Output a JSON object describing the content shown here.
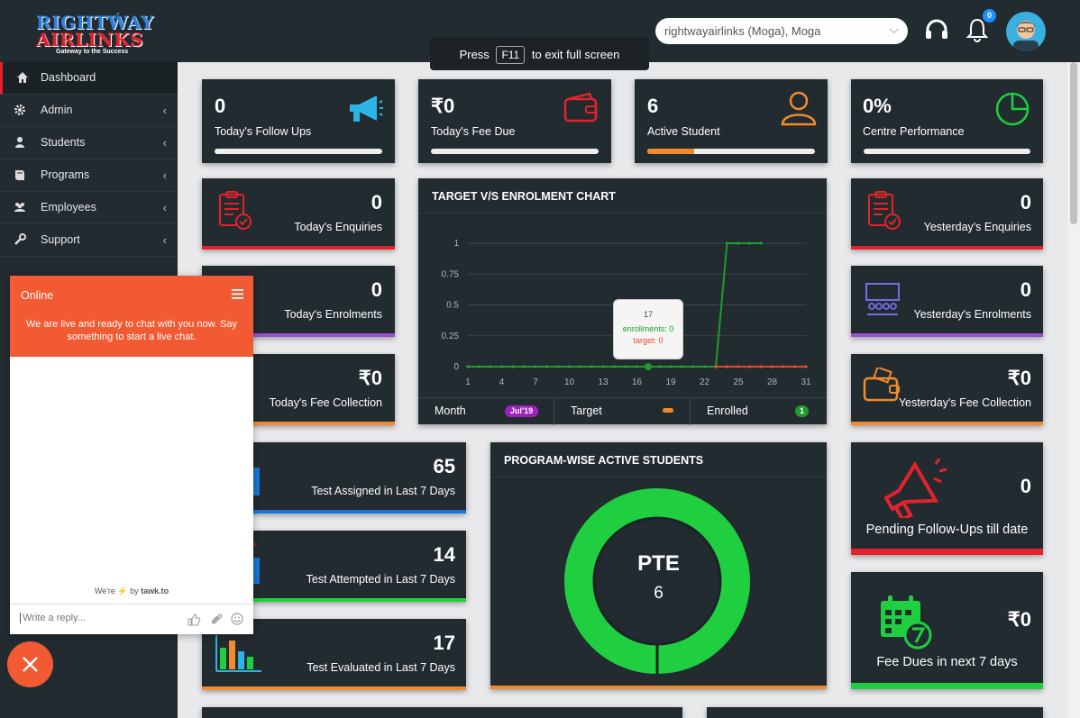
{
  "header": {
    "logo_line1": "RIGHTWAY",
    "logo_line2": "AIRLINKS",
    "logo_tagline": "Gateway to the Success",
    "branch_select": "rightwayairlinks (Moga), Moga",
    "notification_count": "0"
  },
  "fullscreen_notice": {
    "before": "Press",
    "key": "F11",
    "after": "to exit full screen"
  },
  "sidebar": {
    "items": [
      {
        "label": "Dashboard",
        "icon": "home-icon",
        "active": true
      },
      {
        "label": "Admin",
        "icon": "gear-icon"
      },
      {
        "label": "Students",
        "icon": "user-icon"
      },
      {
        "label": "Programs",
        "icon": "book-icon"
      },
      {
        "label": "Employees",
        "icon": "users-icon"
      },
      {
        "label": "Support",
        "icon": "wrench-icon"
      }
    ]
  },
  "stats": {
    "follow_ups": {
      "value": "0",
      "label": "Today's Follow Ups"
    },
    "fee_due": {
      "value": "₹0",
      "label": "Today's Fee Due"
    },
    "active_student": {
      "value": "6",
      "label": "Active Student",
      "progress": 0.28
    },
    "centre_performance": {
      "value": "0%",
      "label": "Centre Performance"
    },
    "today_enquiries": {
      "value": "0",
      "label": "Today's Enquiries"
    },
    "today_enrolments": {
      "value": "0",
      "label": "Today's Enrolments"
    },
    "today_fee_collection": {
      "value": "₹0",
      "label": "Today's Fee Collection"
    },
    "yesterday_enquiries": {
      "value": "0",
      "label": "Yesterday's Enquiries"
    },
    "yesterday_enrolments": {
      "value": "0",
      "label": "Yesterday's Enrolments"
    },
    "yesterday_fee_collection": {
      "value": "₹0",
      "label": "Yesterday's Fee Collection"
    },
    "test_assigned": {
      "value": "65",
      "label": "Test Assigned in Last 7 Days"
    },
    "test_attempted": {
      "value": "14",
      "label": "Test Attempted in Last 7 Days"
    },
    "test_evaluated": {
      "value": "17",
      "label": "Test Evaluated in Last 7 Days"
    },
    "pending_followups": {
      "value": "0",
      "label": "Pending Follow-Ups till date"
    },
    "fee_dues_next7": {
      "value": "₹0",
      "label": "Fee Dues in next 7 days"
    }
  },
  "target_chart": {
    "title": "TARGET V/S ENROLMENT CHART",
    "tooltip": {
      "title": "17",
      "enrollments": "enrollments: 0",
      "target": "target: 0"
    },
    "footer": {
      "month_label": "Month",
      "month_value": "Jul'19",
      "target_label": "Target",
      "enrolled_label": "Enrolled",
      "enrolled_value": "1"
    }
  },
  "chart_data": {
    "type": "line",
    "title": "TARGET V/S ENROLMENT CHART",
    "xlabel": "",
    "ylabel": "",
    "x_ticks": [
      1,
      4,
      7,
      10,
      13,
      16,
      19,
      22,
      25,
      28,
      31
    ],
    "y_ticks": [
      "0",
      "0.25",
      "0.5",
      "0.75",
      "1"
    ],
    "ylim": [
      0,
      1
    ],
    "xlim": [
      1,
      31
    ],
    "series": [
      {
        "name": "enrollments",
        "color": "#1e9c2f",
        "x": [
          1,
          2,
          3,
          4,
          5,
          6,
          7,
          8,
          9,
          10,
          11,
          12,
          13,
          14,
          15,
          16,
          17,
          18,
          19,
          20,
          21,
          22,
          23,
          24,
          25,
          26,
          27
        ],
        "values": [
          0,
          0,
          0,
          0,
          0,
          0,
          0,
          0,
          0,
          0,
          0,
          0,
          0,
          0,
          0,
          0,
          0,
          0,
          0,
          0,
          0,
          0,
          0,
          1,
          1,
          1,
          1
        ]
      },
      {
        "name": "target",
        "color": "#e8462a",
        "x": [
          23,
          24,
          25,
          26,
          27,
          28,
          29,
          30,
          31
        ],
        "values": [
          0,
          0,
          0,
          0,
          0,
          0,
          0,
          0,
          0
        ]
      }
    ]
  },
  "program_chart": {
    "title": "PROGRAM-WISE ACTIVE STUDENTS",
    "center_label": "PTE",
    "center_value": "6"
  },
  "program_chart_data": {
    "type": "pie",
    "categories": [
      "PTE"
    ],
    "values": [
      6
    ],
    "color": "#1fcf3f"
  },
  "chat": {
    "status": "Online",
    "message": "We are live and ready to chat with you now. Say something to start a live chat.",
    "brand_prefix": "We're",
    "brand_by": "by",
    "brand_name": "tawk.to",
    "input_placeholder": "Write a reply..."
  },
  "colors": {
    "panel": "#222b30",
    "accent_red": "#e3232c",
    "accent_purple": "#9b4dd6",
    "accent_orange": "#f08c2e",
    "accent_blue": "#1a73d9",
    "accent_green": "#1fcf3f",
    "chat_orange": "#f15a32"
  }
}
